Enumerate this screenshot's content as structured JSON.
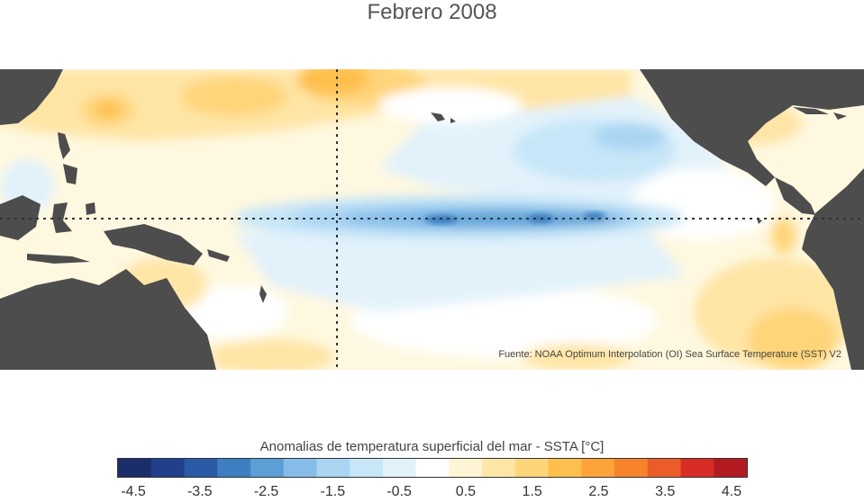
{
  "title": "Febrero 2008",
  "source_note": "Fuente: NOAA Optimum Interpolation (OI) Sea Surface Temperature (SST) V2",
  "legend": {
    "title": "Anomalias de temperatura superficial del mar - SSTA  [°C]",
    "tick_labels": [
      "-4.5",
      "-3.5",
      "-2.5",
      "-1.5",
      "-0.5",
      "0.5",
      "1.5",
      "2.5",
      "3.5",
      "4.5"
    ],
    "range": [
      -4.5,
      4.5
    ],
    "colors": [
      "#1c2d6b",
      "#213f8a",
      "#2a5aa6",
      "#3d7fc0",
      "#5b9fd6",
      "#85bde8",
      "#a9d5f3",
      "#c7e6f8",
      "#e2f2fb",
      "#ffffff",
      "#fff4d4",
      "#ffe5a6",
      "#ffd57a",
      "#ffbf4e",
      "#fda33a",
      "#f7832c",
      "#ec5c29",
      "#d92c27",
      "#b21b22"
    ]
  },
  "colors": {
    "land": "#4d4d4d",
    "title_text": "#555555",
    "reference_lines": "#333333"
  },
  "map": {
    "region": "Pacifico tropical",
    "reference_lines": [
      "ecuador",
      "meridiano 180"
    ]
  }
}
